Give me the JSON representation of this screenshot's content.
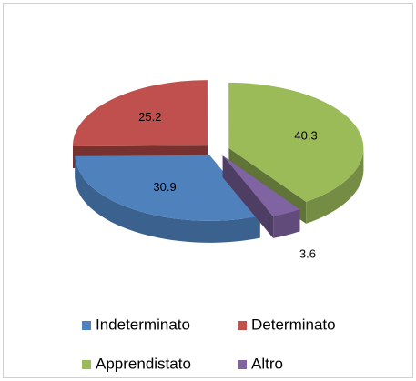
{
  "chart_data": {
    "type": "pie",
    "categories": [
      "Indeterminato",
      "Determinato",
      "Apprendistato",
      "Altro"
    ],
    "values": [
      30.9,
      25.2,
      40.3,
      3.6
    ],
    "colors": [
      "#4f81bd",
      "#c0504d",
      "#9bbb59",
      "#8064a2"
    ]
  }
}
